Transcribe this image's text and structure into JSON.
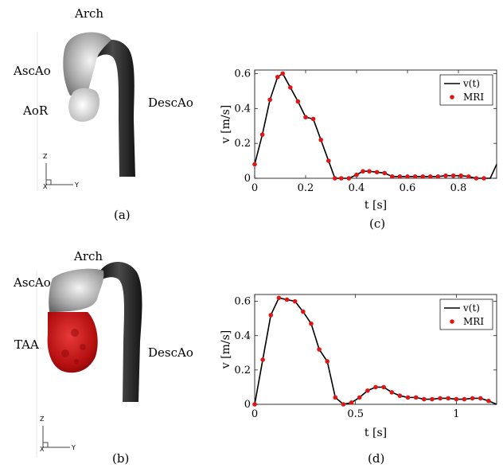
{
  "panels": {
    "a": {
      "caption": "(a)",
      "labels": {
        "arch": "Arch",
        "ascao": "AscAo",
        "aor": "AoR",
        "descao": "DescAo"
      },
      "axes": {
        "z": "Z",
        "x": "X",
        "y": "Y"
      }
    },
    "b": {
      "caption": "(b)",
      "labels": {
        "arch": "Arch",
        "ascao": "AscAo",
        "taa": "TAA",
        "descao": "DescAo"
      },
      "axes": {
        "z": "Z",
        "x": "X",
        "y": "Y"
      }
    },
    "c": {
      "caption": "(c)"
    },
    "d": {
      "caption": "(d)"
    }
  },
  "colors": {
    "descao": "#262626",
    "ascao_light": "#d9d9d9",
    "taa": "#cc1111",
    "series_line": "#000000",
    "series_marker": "#e01515"
  },
  "chart_data": [
    {
      "id": "c",
      "type": "line",
      "xlabel": "t [s]",
      "ylabel": "v [m/s]",
      "xlim": [
        0,
        0.95
      ],
      "ylim": [
        0,
        0.62
      ],
      "xticks": [
        0,
        0.2,
        0.4,
        0.6,
        0.8
      ],
      "xtick_labels": [
        "0",
        "0.2",
        "0.4",
        "0.6",
        "0.8"
      ],
      "yticks": [
        0,
        0.2,
        0.4,
        0.6
      ],
      "ytick_labels": [
        "0",
        "0.2",
        "0.4",
        "0.6"
      ],
      "legend_position": "top-right",
      "series": [
        {
          "name": "v(t)",
          "kind": "line",
          "x": [
            0,
            0.03,
            0.06,
            0.09,
            0.11,
            0.14,
            0.17,
            0.2,
            0.23,
            0.26,
            0.29,
            0.315,
            0.34,
            0.37,
            0.4,
            0.425,
            0.45,
            0.48,
            0.51,
            0.54,
            0.57,
            0.6,
            0.63,
            0.66,
            0.69,
            0.72,
            0.75,
            0.78,
            0.81,
            0.84,
            0.87,
            0.9,
            0.925,
            0.95
          ],
          "y": [
            0.08,
            0.25,
            0.45,
            0.58,
            0.6,
            0.52,
            0.44,
            0.35,
            0.34,
            0.22,
            0.1,
            0.0,
            0.0,
            0.0,
            0.02,
            0.04,
            0.04,
            0.035,
            0.03,
            0.01,
            0.01,
            0.01,
            0.01,
            0.01,
            0.01,
            0.01,
            0.015,
            0.015,
            0.015,
            0.01,
            0.0,
            0.0,
            0.0,
            0.08
          ]
        },
        {
          "name": "MRI",
          "kind": "scatter",
          "x": [
            0,
            0.03,
            0.06,
            0.09,
            0.11,
            0.14,
            0.17,
            0.2,
            0.23,
            0.26,
            0.29,
            0.315,
            0.34,
            0.37,
            0.4,
            0.425,
            0.45,
            0.48,
            0.51,
            0.54,
            0.57,
            0.6,
            0.63,
            0.66,
            0.69,
            0.72,
            0.75,
            0.78,
            0.81,
            0.84,
            0.87,
            0.9
          ],
          "y": [
            0.08,
            0.25,
            0.45,
            0.58,
            0.6,
            0.52,
            0.44,
            0.35,
            0.34,
            0.22,
            0.1,
            0.0,
            0.0,
            0.0,
            0.02,
            0.04,
            0.04,
            0.035,
            0.03,
            0.01,
            0.01,
            0.01,
            0.01,
            0.01,
            0.01,
            0.01,
            0.015,
            0.015,
            0.015,
            0.01,
            0.0,
            0.0
          ]
        }
      ]
    },
    {
      "id": "d",
      "type": "line",
      "xlabel": "t [s]",
      "ylabel": "v [m/s]",
      "xlim": [
        0,
        1.2
      ],
      "ylim": [
        0,
        0.64
      ],
      "xticks": [
        0,
        0.5,
        1
      ],
      "xtick_labels": [
        "0",
        "0.5",
        "1"
      ],
      "yticks": [
        0,
        0.2,
        0.4,
        0.6
      ],
      "ytick_labels": [
        "0",
        "0.2",
        "0.4",
        "0.6"
      ],
      "legend_position": "top-right",
      "series": [
        {
          "name": "v(t)",
          "kind": "line",
          "x": [
            0,
            0.04,
            0.08,
            0.12,
            0.16,
            0.2,
            0.24,
            0.28,
            0.32,
            0.36,
            0.4,
            0.44,
            0.48,
            0.52,
            0.56,
            0.6,
            0.64,
            0.68,
            0.72,
            0.76,
            0.8,
            0.84,
            0.88,
            0.92,
            0.96,
            1.0,
            1.04,
            1.08,
            1.12,
            1.16,
            1.2
          ],
          "y": [
            0.0,
            0.26,
            0.52,
            0.62,
            0.61,
            0.6,
            0.54,
            0.47,
            0.32,
            0.25,
            0.04,
            0.0,
            0.01,
            0.04,
            0.08,
            0.1,
            0.1,
            0.07,
            0.05,
            0.04,
            0.04,
            0.03,
            0.03,
            0.035,
            0.035,
            0.03,
            0.03,
            0.035,
            0.035,
            0.02,
            0.0
          ]
        },
        {
          "name": "MRI",
          "kind": "scatter",
          "x": [
            0,
            0.04,
            0.08,
            0.12,
            0.16,
            0.2,
            0.24,
            0.28,
            0.32,
            0.36,
            0.4,
            0.44,
            0.48,
            0.52,
            0.56,
            0.6,
            0.64,
            0.68,
            0.72,
            0.76,
            0.8,
            0.84,
            0.88,
            0.92,
            0.96,
            1.0,
            1.04,
            1.08,
            1.12,
            1.16
          ],
          "y": [
            0.0,
            0.26,
            0.52,
            0.62,
            0.61,
            0.6,
            0.54,
            0.47,
            0.32,
            0.25,
            0.04,
            0.0,
            0.01,
            0.04,
            0.08,
            0.1,
            0.1,
            0.07,
            0.05,
            0.04,
            0.04,
            0.03,
            0.03,
            0.035,
            0.035,
            0.03,
            0.03,
            0.035,
            0.035,
            0.02
          ]
        }
      ]
    }
  ]
}
